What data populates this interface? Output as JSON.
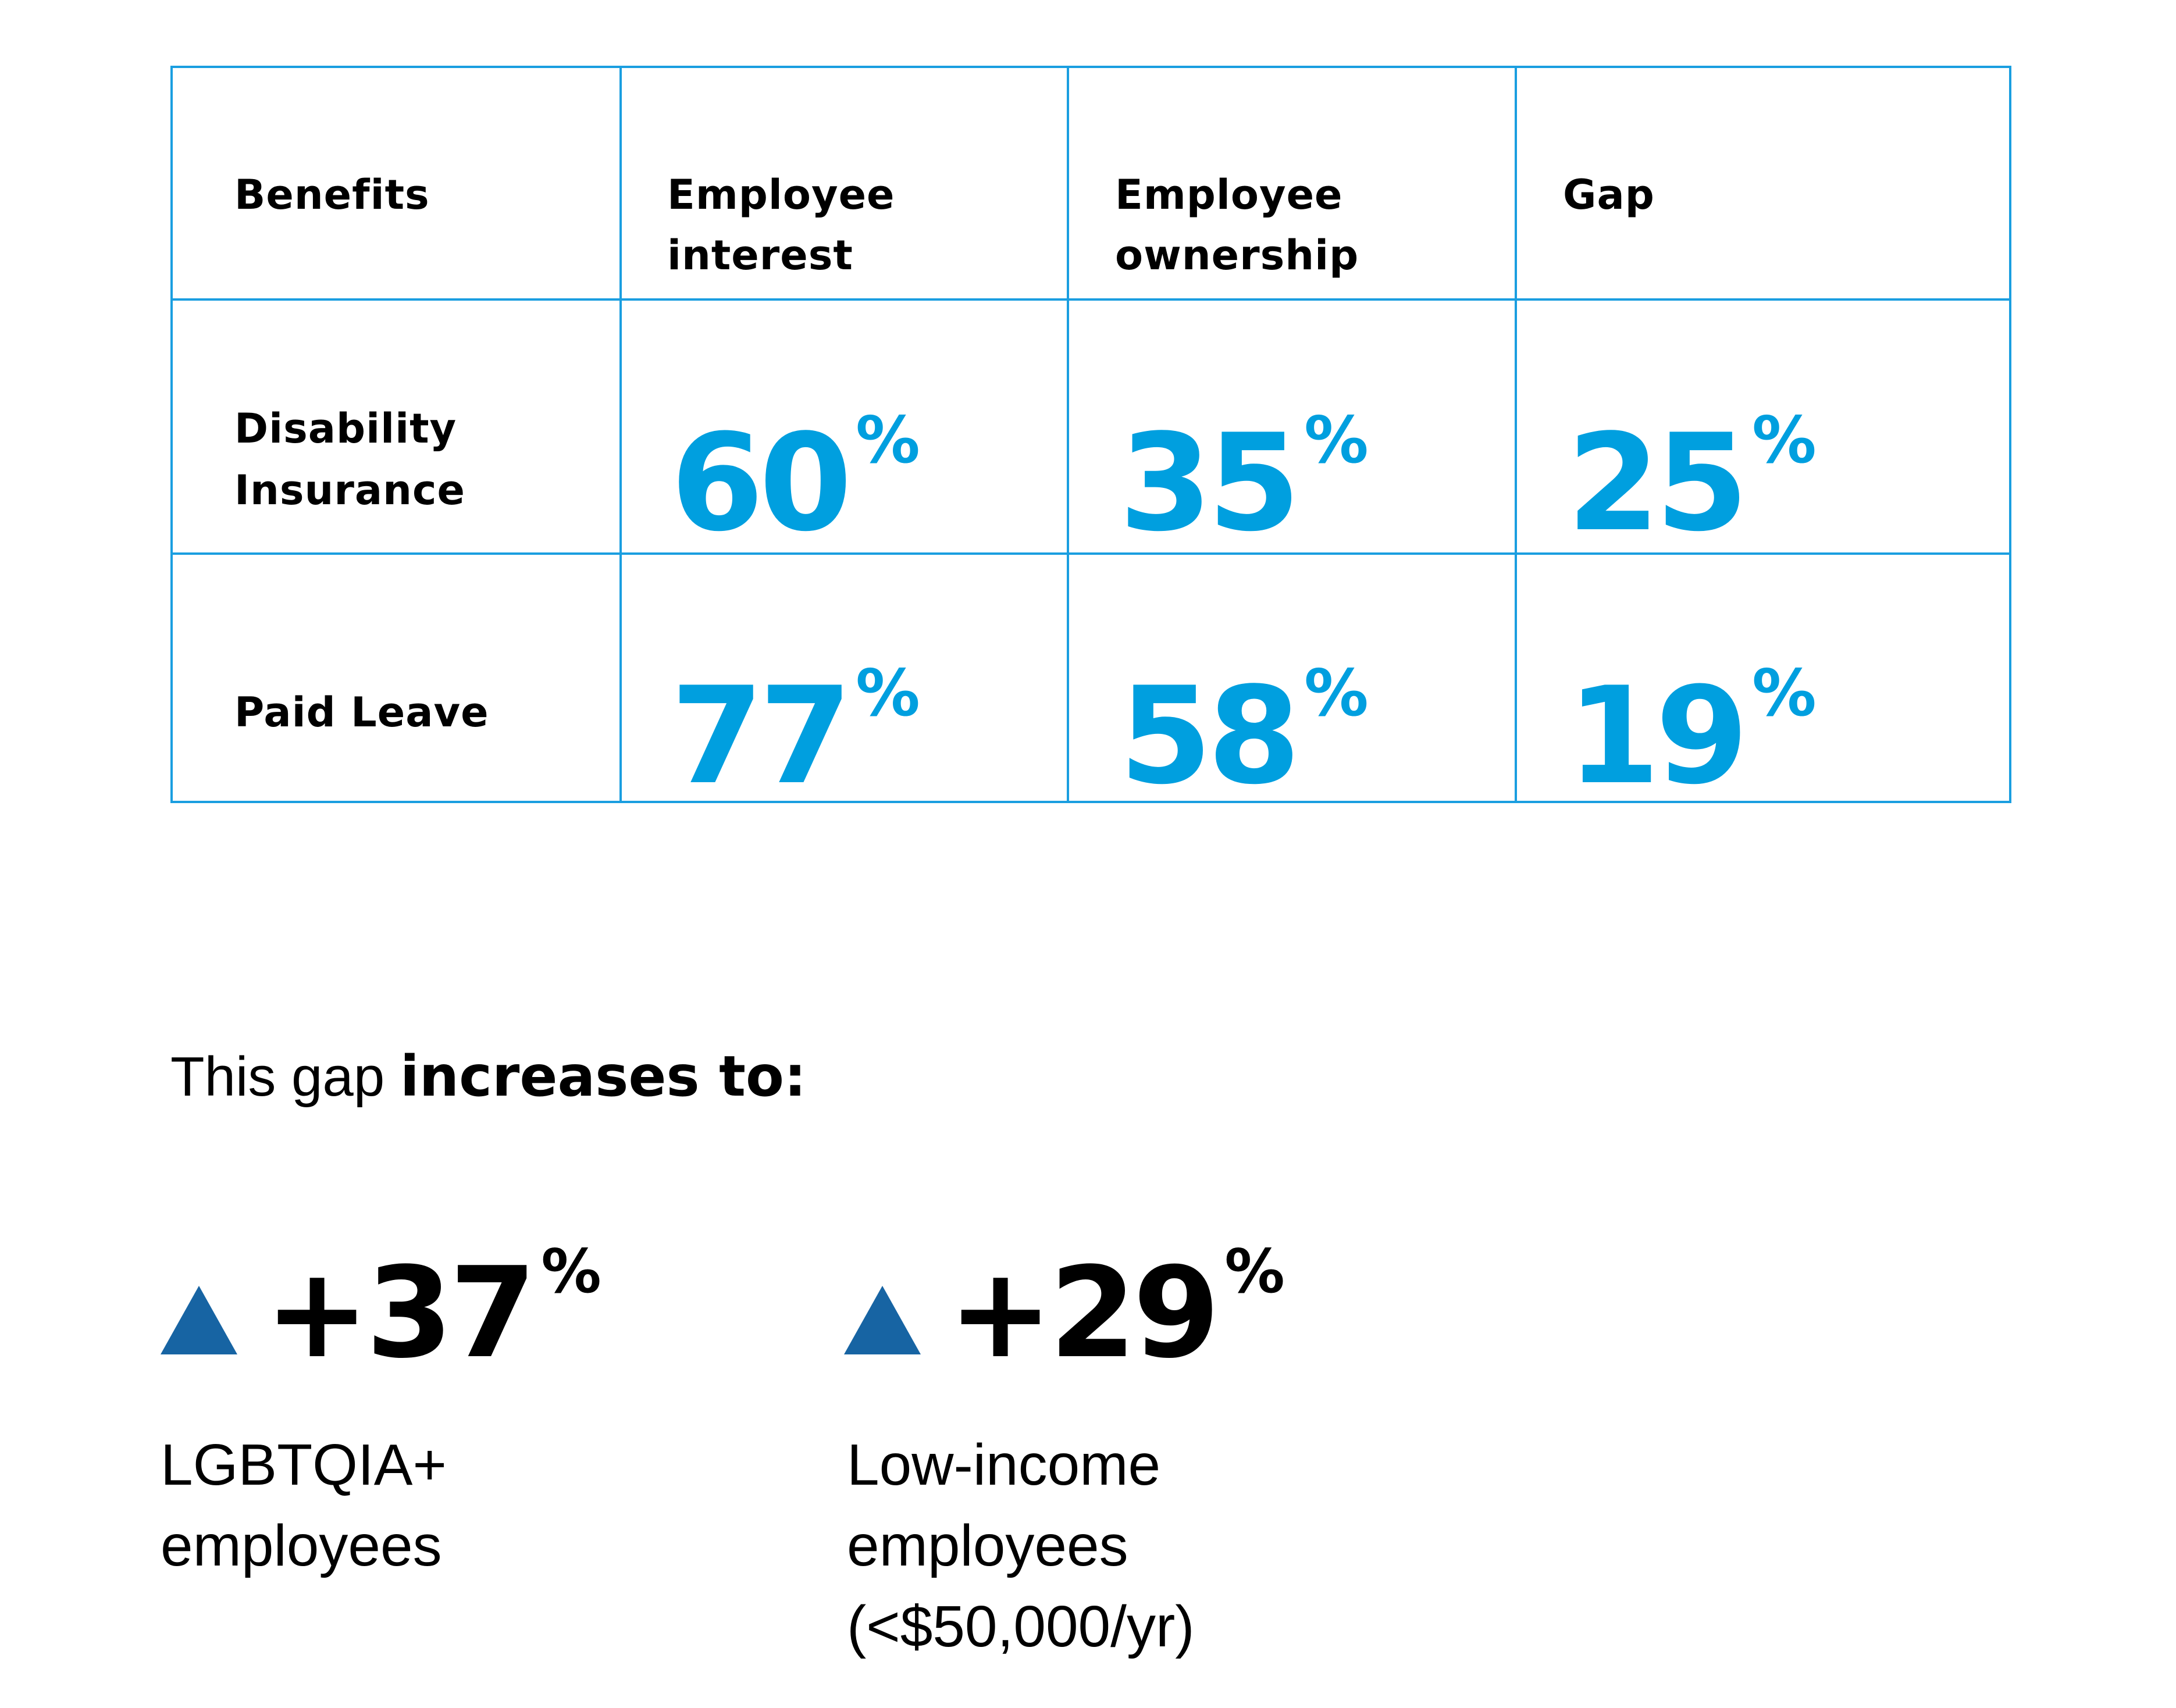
{
  "colors": {
    "accent": "#009fdf",
    "border": "#1a9ee0",
    "triangle": "#1764a3",
    "text": "#000000"
  },
  "table": {
    "headers": [
      {
        "line1": "Benefits",
        "line2": ""
      },
      {
        "line1": "Employee",
        "line2": "interest"
      },
      {
        "line1": "Employee",
        "line2": "ownership"
      },
      {
        "line1": "Gap",
        "line2": ""
      }
    ],
    "rows": [
      {
        "label1": "Disability",
        "label2": "Insurance",
        "values": [
          "60",
          "35",
          "25"
        ]
      },
      {
        "label1": "Paid Leave",
        "label2": "",
        "values": [
          "77",
          "58",
          "19"
        ]
      }
    ],
    "percent_sign": "%"
  },
  "intro": {
    "normal": "This gap ",
    "bold": "increases to:"
  },
  "stats": [
    {
      "icon": "triangle-up-icon",
      "value": "+37",
      "unit": "%",
      "label": [
        "LGBTQIA+",
        "employees"
      ]
    },
    {
      "icon": "triangle-up-icon",
      "value": "+29",
      "unit": "%",
      "label": [
        "Low-income",
        "employees",
        "(<$50,000/yr)"
      ]
    }
  ]
}
